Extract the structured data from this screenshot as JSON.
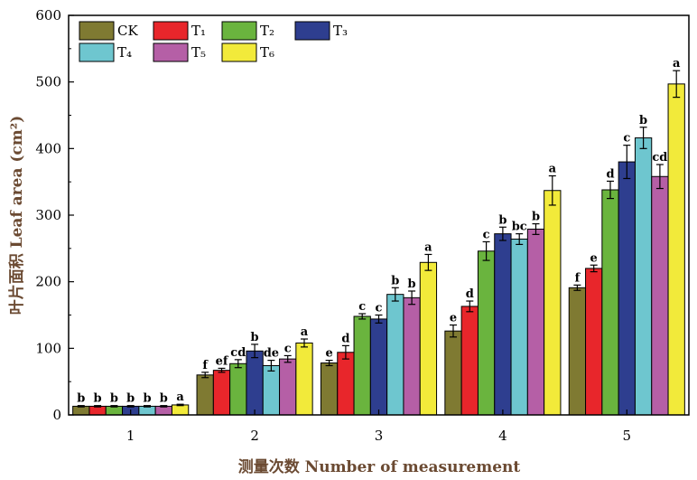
{
  "chart_data": {
    "type": "bar",
    "xlabel": "测量次数 Number of measurement",
    "ylabel": "叶片面积 Leaf area (cm²)",
    "categories": [
      "1",
      "2",
      "3",
      "4",
      "5"
    ],
    "ylim": [
      0,
      600
    ],
    "yticks": [
      "0",
      "100",
      "200",
      "300",
      "400",
      "500",
      "600"
    ],
    "legend_position": "top-left",
    "series": [
      {
        "name": "CK",
        "color": "#7f7a32",
        "values": [
          13,
          60,
          78,
          126,
          191
        ],
        "errors": [
          1,
          4,
          4,
          9,
          4
        ],
        "letters": [
          "b",
          "f",
          "e",
          "e",
          "f"
        ]
      },
      {
        "name": "T₁",
        "color": "#e8262b",
        "values": [
          13,
          67,
          94,
          163,
          220
        ],
        "errors": [
          1,
          3,
          10,
          8,
          5
        ],
        "letters": [
          "b",
          "ef",
          "d",
          "d",
          "e"
        ]
      },
      {
        "name": "T₂",
        "color": "#6ab43e",
        "values": [
          13,
          77,
          148,
          246,
          338
        ],
        "errors": [
          1,
          6,
          4,
          14,
          13
        ],
        "letters": [
          "b",
          "cd",
          "c",
          "c",
          "d"
        ]
      },
      {
        "name": "T₃",
        "color": "#2e3e8f",
        "values": [
          13,
          96,
          144,
          272,
          380
        ],
        "errors": [
          1,
          10,
          6,
          10,
          25
        ],
        "letters": [
          "b",
          "b",
          "c",
          "b",
          "c"
        ]
      },
      {
        "name": "T₄",
        "color": "#6ec6cf",
        "values": [
          13,
          74,
          181,
          264,
          416
        ],
        "errors": [
          1,
          8,
          10,
          8,
          16
        ],
        "letters": [
          "b",
          "de",
          "b",
          "bc",
          "b"
        ]
      },
      {
        "name": "T₅",
        "color": "#b55fa6",
        "values": [
          13,
          84,
          176,
          279,
          358
        ],
        "errors": [
          1,
          5,
          10,
          8,
          18
        ],
        "letters": [
          "b",
          "c",
          "b",
          "b",
          "cd"
        ]
      },
      {
        "name": "T₆",
        "color": "#f2ea3a",
        "values": [
          15,
          108,
          229,
          337,
          497
        ],
        "errors": [
          1,
          6,
          12,
          22,
          20
        ],
        "letters": [
          "a",
          "a",
          "a",
          "a",
          "a"
        ]
      }
    ]
  }
}
